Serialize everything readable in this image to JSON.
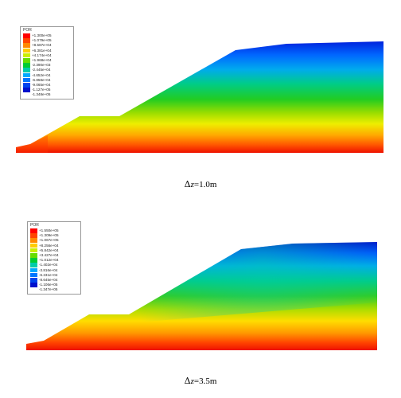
{
  "panels": [
    {
      "legend_title": "POR",
      "legend_values": [
        "+1.300e+05",
        "+1.079e+05",
        "+8.587e+04",
        "+6.381e+04",
        "+4.174e+04",
        "+1.968e+04",
        "-2.390e+03",
        "-2.445e+04",
        "-4.652e+04",
        "-6.858e+04",
        "-9.065e+04",
        "-1.127e+05",
        "-1.348e+05"
      ],
      "caption_delta": "Δ",
      "caption_var": "z",
      "caption_rest": "=1.0m"
    },
    {
      "legend_title": "POR",
      "legend_values": [
        "+1.550e+05",
        "+1.309e+05",
        "+1.067e+05",
        "+8.256e+04",
        "+5.842e+04",
        "+3.427e+04",
        "+1.012e+04",
        "-1.402e+04",
        "-3.816e+04",
        "-6.231e+04",
        "-8.645e+04",
        "-1.106e+05",
        "-1.347e+05"
      ],
      "caption_delta": "Δ",
      "caption_var": "z",
      "caption_rest": "=3.5m"
    }
  ],
  "colors": {
    "scale": [
      "#ff0000",
      "#ff4400",
      "#ff8800",
      "#ffcc00",
      "#ccee00",
      "#66dd00",
      "#00cc33",
      "#00ccaa",
      "#00aaff",
      "#0077ff",
      "#0044ee",
      "#0011cc"
    ]
  }
}
